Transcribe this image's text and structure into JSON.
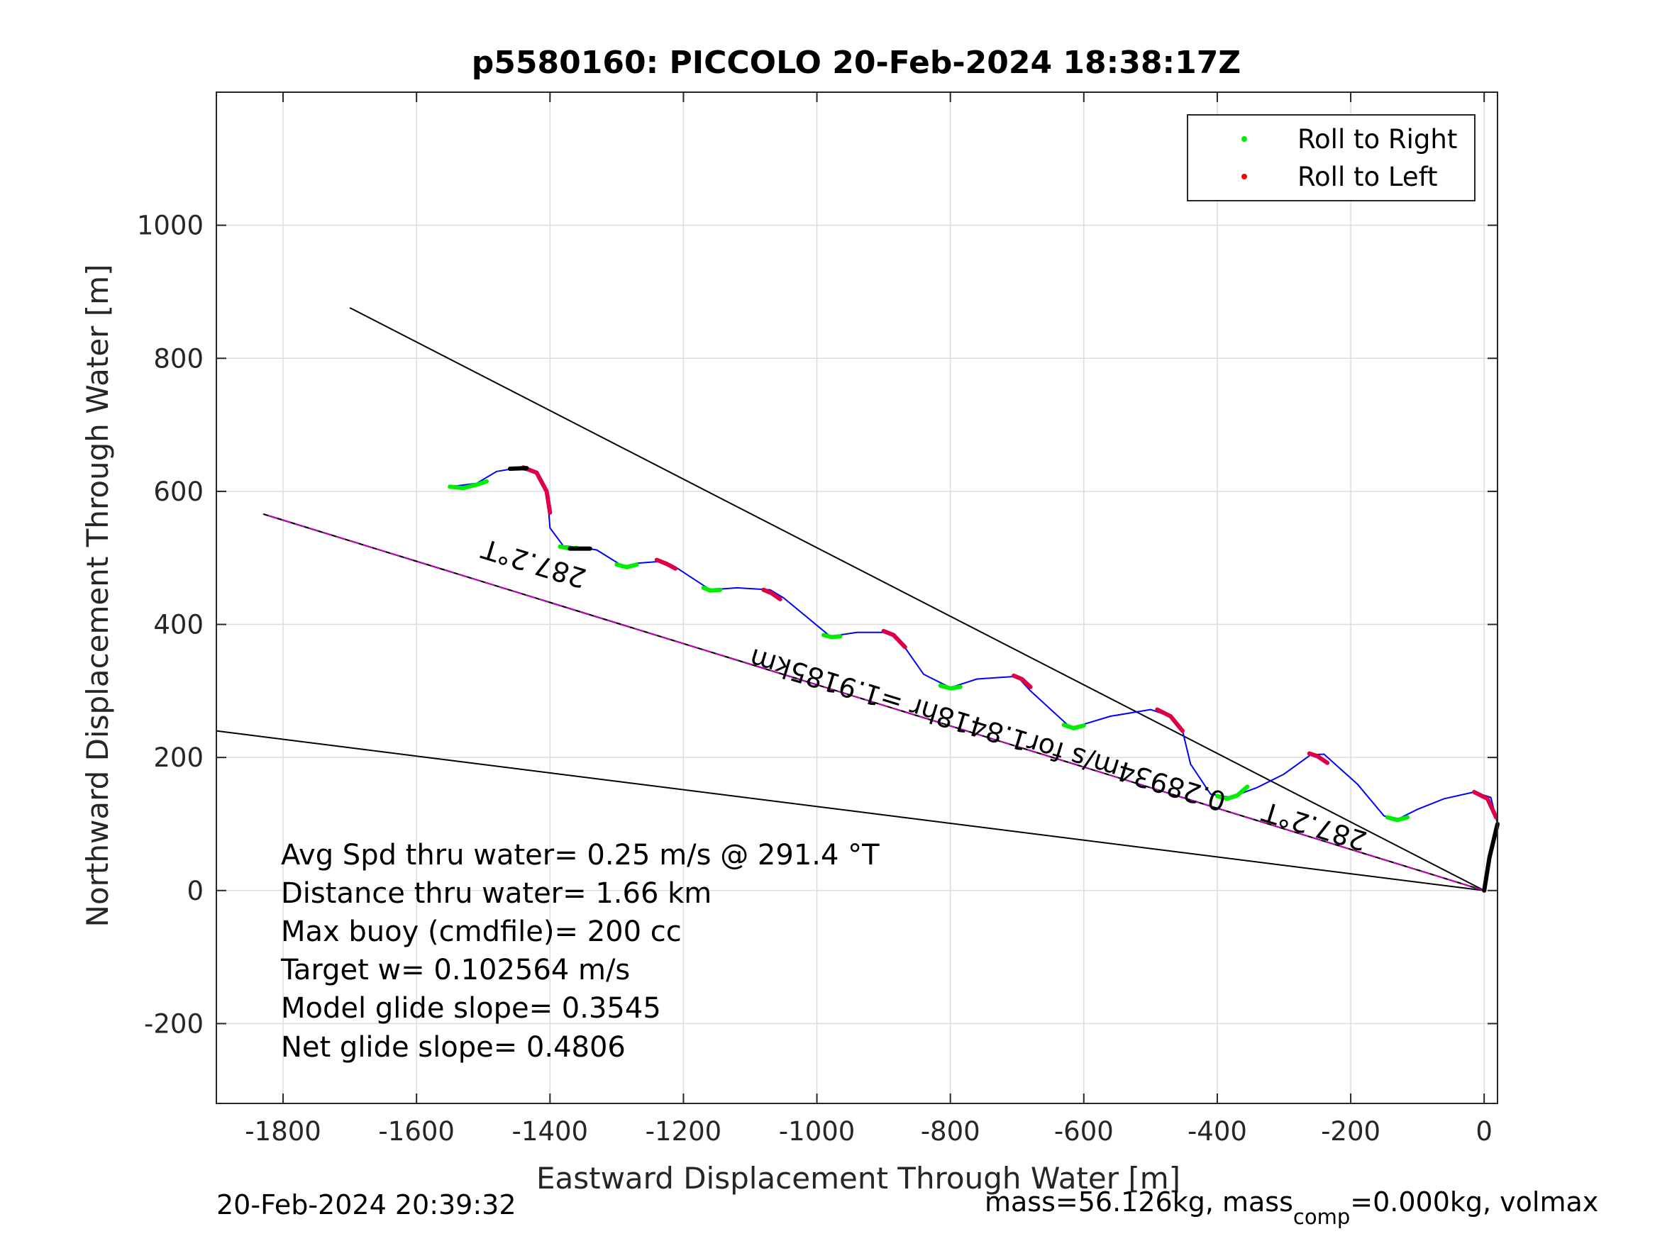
{
  "chart_data": {
    "type": "line",
    "title": "p5580160: PICCOLO 20-Feb-2024 18:38:17Z",
    "xlabel": "Eastward Displacement Through Water [m]",
    "ylabel": "Northward Displacement Through Water [m]",
    "xlim": [
      -1900,
      20
    ],
    "ylim": [
      -320,
      1200
    ],
    "xticks": [
      -1800,
      -1600,
      -1400,
      -1200,
      -1000,
      -800,
      -600,
      -400,
      -200,
      0
    ],
    "yticks": [
      -200,
      0,
      200,
      400,
      600,
      800,
      1000
    ],
    "grid": true,
    "legend_position": "top-right",
    "legend": [
      {
        "label": "Roll to Right",
        "color": "#00ee00"
      },
      {
        "label": "Roll to Left",
        "color": "#ff0000"
      }
    ],
    "colors": {
      "track": "#0000ff",
      "roll_right": "#00ee00",
      "roll_left": "#dd0044",
      "heading_line": "#cc00cc",
      "reference_lines": "#000000",
      "surface_segments": "#000000"
    },
    "track": [
      [
        0,
        0
      ],
      [
        20,
        100
      ],
      [
        10,
        140
      ],
      [
        -15,
        148
      ],
      [
        -60,
        138
      ],
      [
        -100,
        122
      ],
      [
        -128,
        108
      ],
      [
        -150,
        112
      ],
      [
        -190,
        160
      ],
      [
        -240,
        205
      ],
      [
        -260,
        204
      ],
      [
        -300,
        175
      ],
      [
        -340,
        155
      ],
      [
        -380,
        140
      ],
      [
        -410,
        145
      ],
      [
        -440,
        190
      ],
      [
        -452,
        240
      ],
      [
        -470,
        262
      ],
      [
        -500,
        272
      ],
      [
        -560,
        262
      ],
      [
        -600,
        250
      ],
      [
        -620,
        245
      ],
      [
        -680,
        300
      ],
      [
        -700,
        322
      ],
      [
        -760,
        318
      ],
      [
        -800,
        305
      ],
      [
        -840,
        325
      ],
      [
        -870,
        368
      ],
      [
        -890,
        388
      ],
      [
        -940,
        388
      ],
      [
        -980,
        382
      ],
      [
        -1050,
        440
      ],
      [
        -1070,
        452
      ],
      [
        -1120,
        455
      ],
      [
        -1160,
        452
      ],
      [
        -1210,
        485
      ],
      [
        -1230,
        495
      ],
      [
        -1270,
        492
      ],
      [
        -1290,
        487
      ],
      [
        -1330,
        512
      ],
      [
        -1350,
        515
      ],
      [
        -1380,
        518
      ],
      [
        -1400,
        545
      ],
      [
        -1402,
        570
      ],
      [
        -1405,
        600
      ],
      [
        -1420,
        628
      ],
      [
        -1450,
        635
      ],
      [
        -1480,
        630
      ],
      [
        -1510,
        612
      ],
      [
        -1550,
        607
      ]
    ],
    "roll_right_segments": [
      [
        [
          -1550,
          607
        ],
        [
          -1530,
          605
        ],
        [
          -1510,
          610
        ],
        [
          -1495,
          615
        ]
      ],
      [
        [
          -1385,
          517
        ],
        [
          -1370,
          514
        ],
        [
          -1360,
          515
        ]
      ],
      [
        [
          -1300,
          490
        ],
        [
          -1285,
          486
        ],
        [
          -1270,
          490
        ]
      ],
      [
        [
          -1170,
          455
        ],
        [
          -1160,
          451
        ],
        [
          -1145,
          452
        ]
      ],
      [
        [
          -990,
          384
        ],
        [
          -978,
          381
        ],
        [
          -965,
          382
        ]
      ],
      [
        [
          -815,
          308
        ],
        [
          -800,
          304
        ],
        [
          -785,
          306
        ]
      ],
      [
        [
          -630,
          249
        ],
        [
          -615,
          244
        ],
        [
          -600,
          248
        ]
      ],
      [
        [
          -400,
          142
        ],
        [
          -385,
          138
        ],
        [
          -370,
          143
        ],
        [
          -355,
          156
        ]
      ],
      [
        [
          -145,
          110
        ],
        [
          -130,
          106
        ],
        [
          -115,
          110
        ]
      ]
    ],
    "roll_left_segments": [
      [
        [
          -1440,
          636
        ],
        [
          -1420,
          628
        ],
        [
          -1405,
          600
        ],
        [
          -1400,
          568
        ]
      ],
      [
        [
          -1240,
          497
        ],
        [
          -1225,
          491
        ],
        [
          -1212,
          484
        ]
      ],
      [
        [
          -1080,
          452
        ],
        [
          -1068,
          447
        ],
        [
          -1055,
          438
        ]
      ],
      [
        [
          -900,
          390
        ],
        [
          -885,
          384
        ],
        [
          -868,
          366
        ]
      ],
      [
        [
          -705,
          323
        ],
        [
          -693,
          318
        ],
        [
          -680,
          306
        ]
      ],
      [
        [
          -490,
          272
        ],
        [
          -470,
          262
        ],
        [
          -452,
          240
        ]
      ],
      [
        [
          -262,
          206
        ],
        [
          -250,
          202
        ],
        [
          -235,
          192
        ]
      ],
      [
        [
          -15,
          148
        ],
        [
          5,
          138
        ],
        [
          18,
          110
        ]
      ]
    ],
    "surface_segments": [
      [
        [
          -1460,
          634
        ],
        [
          -1435,
          635
        ]
      ],
      [
        [
          -1370,
          514
        ],
        [
          -1340,
          514
        ]
      ],
      [
        [
          0,
          0
        ],
        [
          8,
          50
        ],
        [
          20,
          100
        ]
      ]
    ],
    "heading_line": {
      "from": [
        0,
        0
      ],
      "to": [
        -1830,
        566
      ],
      "label": "287.2°T"
    },
    "reference_lines": [
      {
        "from": [
          0,
          0
        ],
        "to": [
          -1700,
          876
        ]
      },
      {
        "from": [
          0,
          0
        ],
        "to": [
          -1900,
          240
        ]
      }
    ],
    "annotations": [
      {
        "text": "287.2°T",
        "x": -1420,
        "y": 505,
        "rotation_deg": 197
      },
      {
        "text": "287.2°T",
        "x": -250,
        "y": 110,
        "rotation_deg": 197
      },
      {
        "text": "0.28934m/s for1.8418hr =1.9185km",
        "x": -740,
        "y": 255,
        "rotation_deg": 197
      }
    ]
  },
  "stats": {
    "avg_speed": "Avg Spd thru water=  0.25 m/s @ 291.4 °T",
    "distance": "Distance thru water=  1.66 km",
    "max_buoy": "Max buoy (cmdfile)= 200 cc",
    "target_w": "Target w= 0.102564 m/s",
    "model_glide": "Model glide slope= 0.3545",
    "net_glide": "Net glide slope= 0.4806"
  },
  "footer": {
    "timestamp": "20-Feb-2024 20:39:32",
    "mass_prefix": "mass=56.126kg, mass",
    "mass_sub": "comp",
    "mass_suffix": "=0.000kg, volmax"
  }
}
